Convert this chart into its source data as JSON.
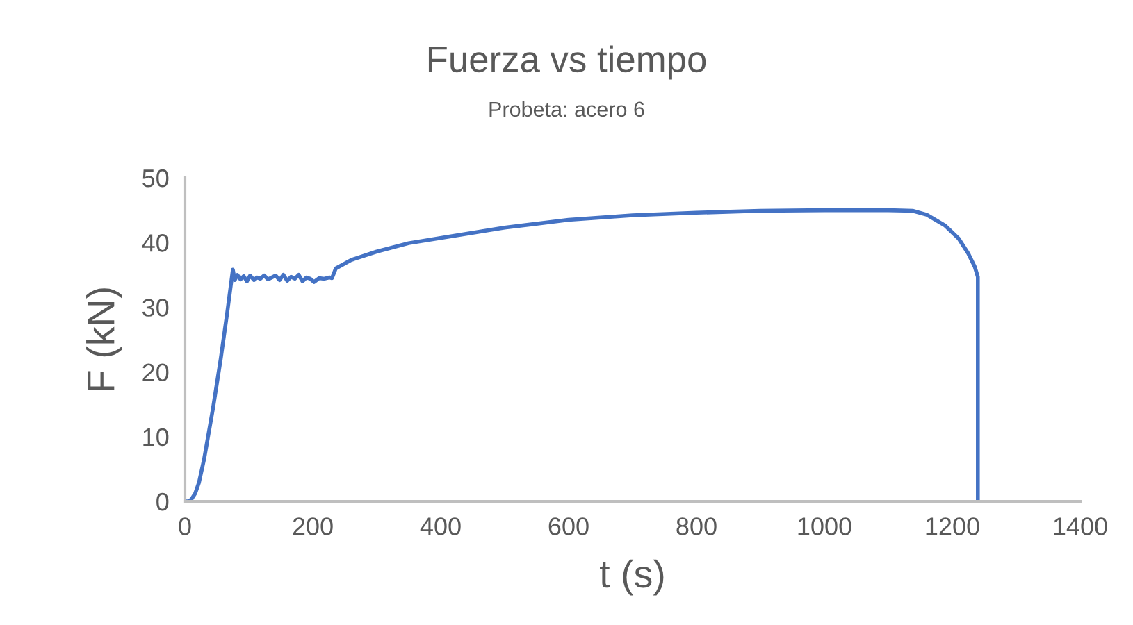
{
  "chart_data": {
    "type": "line",
    "title": "Fuerza vs tiempo",
    "subtitle": "Probeta: acero 6",
    "xlabel": "t (s)",
    "ylabel": "F (kN)",
    "xlim": [
      0,
      1400
    ],
    "ylim": [
      0,
      50
    ],
    "xticks": [
      0,
      200,
      400,
      600,
      800,
      1000,
      1200,
      1400
    ],
    "yticks": [
      0,
      10,
      20,
      30,
      40,
      50
    ],
    "grid": false,
    "line_style": "solid",
    "series": [
      {
        "color": "#4472c4",
        "x": [
          0,
          6,
          10,
          16,
          22,
          30,
          44,
          56,
          66,
          75,
          78,
          82,
          87,
          92,
          97,
          102,
          108,
          113,
          118,
          124,
          130,
          136,
          142,
          148,
          154,
          160,
          166,
          172,
          178,
          184,
          190,
          196,
          202,
          210,
          218,
          226,
          230,
          236,
          260,
          300,
          350,
          406,
          500,
          600,
          700,
          800,
          900,
          1000,
          1100,
          1138,
          1160,
          1189,
          1210,
          1225,
          1235,
          1240,
          1240
        ],
        "values": [
          0,
          0,
          0.3,
          1.2,
          2.9,
          6.5,
          14.4,
          22,
          29,
          35.8,
          34.2,
          35,
          34.3,
          34.8,
          34,
          34.9,
          34.2,
          34.6,
          34.4,
          34.9,
          34.3,
          34.6,
          34.9,
          34.2,
          35,
          34.1,
          34.7,
          34.4,
          35,
          34,
          34.6,
          34.4,
          33.9,
          34.5,
          34.4,
          34.6,
          34.5,
          36,
          37.3,
          38.6,
          39.9,
          40.8,
          42.3,
          43.5,
          44.2,
          44.6,
          44.9,
          45,
          45,
          44.9,
          44.3,
          42.6,
          40.6,
          38.3,
          36.3,
          34.7,
          0
        ]
      }
    ]
  }
}
